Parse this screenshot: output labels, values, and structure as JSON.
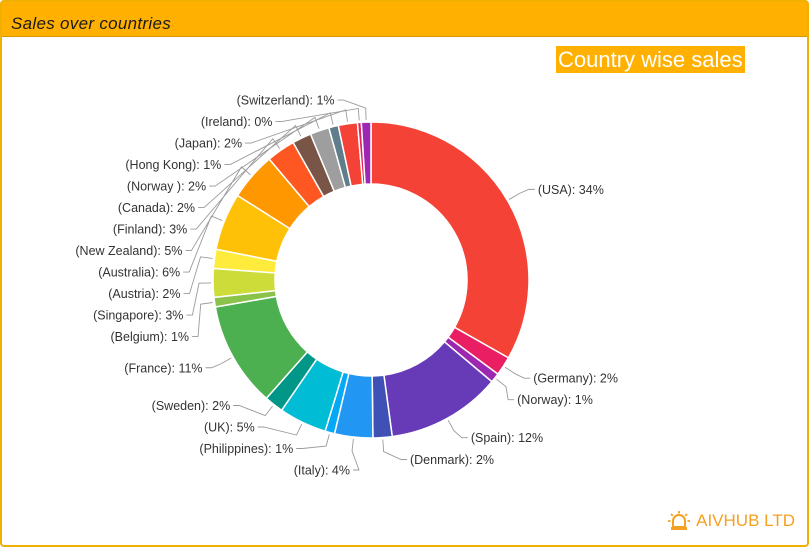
{
  "panel": {
    "title": "Sales over countries"
  },
  "brand": {
    "name": "AIVHUB LTD",
    "icon": "alarm-light-icon",
    "color": "#f5a020"
  },
  "chart_data": {
    "type": "pie",
    "donut": true,
    "title": "Country wise sales",
    "slices": [
      {
        "label": "(USA): 34%",
        "value": 34,
        "color": "#f44336"
      },
      {
        "label": "(Germany): 2%",
        "value": 2,
        "color": "#e91e63"
      },
      {
        "label": "(Norway): 1%",
        "value": 1,
        "color": "#9c27b0"
      },
      {
        "label": "(Spain): 12%",
        "value": 12,
        "color": "#673ab7"
      },
      {
        "label": "(Denmark): 2%",
        "value": 2,
        "color": "#3f51b5"
      },
      {
        "label": "(Italy): 4%",
        "value": 4,
        "color": "#2196f3"
      },
      {
        "label": "(Philippines): 1%",
        "value": 1,
        "color": "#03a9f4"
      },
      {
        "label": "(UK): 5%",
        "value": 5,
        "color": "#00bcd4"
      },
      {
        "label": "(Sweden): 2%",
        "value": 2,
        "color": "#009688"
      },
      {
        "label": "(France): 11%",
        "value": 11,
        "color": "#4caf50"
      },
      {
        "label": "(Belgium): 1%",
        "value": 1,
        "color": "#8bc34a"
      },
      {
        "label": "(Singapore): 3%",
        "value": 3,
        "color": "#cddc39"
      },
      {
        "label": "(Austria): 2%",
        "value": 2,
        "color": "#ffeb3b"
      },
      {
        "label": "(Australia): 6%",
        "value": 6,
        "color": "#ffc107"
      },
      {
        "label": "(New Zealand): 5%",
        "value": 5,
        "color": "#ff9800"
      },
      {
        "label": "(Finland): 3%",
        "value": 3,
        "color": "#ff5722"
      },
      {
        "label": "(Canada): 2%",
        "value": 2,
        "color": "#795548"
      },
      {
        "label": "(Norway ): 2%",
        "value": 2,
        "color": "#9e9e9e"
      },
      {
        "label": "(Hong Kong): 1%",
        "value": 1,
        "color": "#607d8b"
      },
      {
        "label": "(Japan): 2%",
        "value": 2,
        "color": "#f44336"
      },
      {
        "label": "(Ireland): 0%",
        "value": 0.4,
        "color": "#e91e63"
      },
      {
        "label": "(Switzerland): 1%",
        "value": 1,
        "color": "#9c27b0"
      }
    ]
  }
}
